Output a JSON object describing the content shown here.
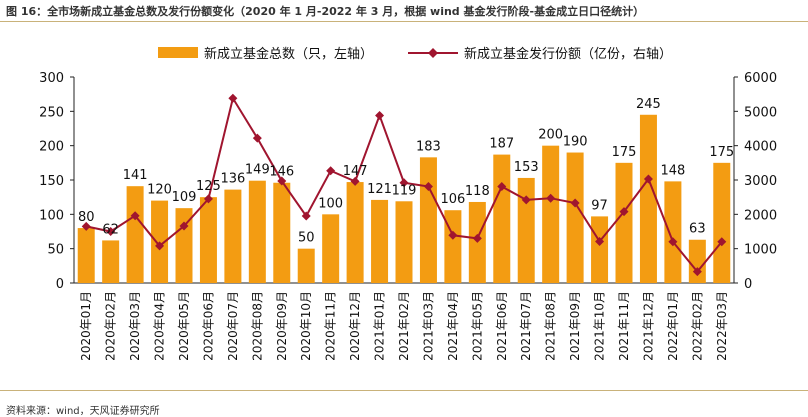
{
  "caption": "图 16：全市场新成立基金总数及发行份额变化（2020 年 1 月-2022 年 3 月，根据 wind 基金发行阶段-基金成立日口径统计）",
  "source": "资料来源：wind，天风证券研究所",
  "colors": {
    "bar": "#f39c12",
    "line": "#a0152f",
    "rule": "#c9b27a"
  },
  "chart_data": {
    "type": "bar",
    "categories": [
      "2020年01月",
      "2020年02月",
      "2020年03月",
      "2020年04月",
      "2020年05月",
      "2020年06月",
      "2020年07月",
      "2020年08月",
      "2020年09月",
      "2020年10月",
      "2020年11月",
      "2020年12月",
      "2021年01月",
      "2021年02月",
      "2021年03月",
      "2021年04月",
      "2021年05月",
      "2021年06月",
      "2021年07月",
      "2021年08月",
      "2021年09月",
      "2021年10月",
      "2021年11月",
      "2021年12月",
      "2022年01月",
      "2022年02月",
      "2022年03月"
    ],
    "series": [
      {
        "name": "新成立基金总数（只，左轴）",
        "type": "bar",
        "axis": "left",
        "values": [
          80,
          62,
          141,
          120,
          109,
          125,
          136,
          149,
          146,
          50,
          100,
          147,
          121,
          119,
          183,
          106,
          118,
          187,
          153,
          200,
          190,
          97,
          175,
          245,
          148,
          63,
          175
        ]
      },
      {
        "name": "新成立基金发行份额（亿份，右轴）",
        "type": "line",
        "axis": "right",
        "values": [
          1650,
          1500,
          1960,
          1080,
          1660,
          2450,
          5380,
          4220,
          2970,
          1950,
          3270,
          2960,
          4880,
          2920,
          2810,
          1390,
          1300,
          2810,
          2420,
          2470,
          2330,
          1210,
          2080,
          3030,
          1200,
          330,
          1200
        ]
      }
    ],
    "y_left": {
      "ylim": [
        0,
        300
      ],
      "ticks": [
        0,
        50,
        100,
        150,
        200,
        250,
        300
      ]
    },
    "y_right": {
      "ylim": [
        0,
        6000
      ],
      "ticks": [
        0,
        1000,
        2000,
        3000,
        4000,
        5000,
        6000
      ]
    },
    "legend": "top-center",
    "grid": false
  }
}
